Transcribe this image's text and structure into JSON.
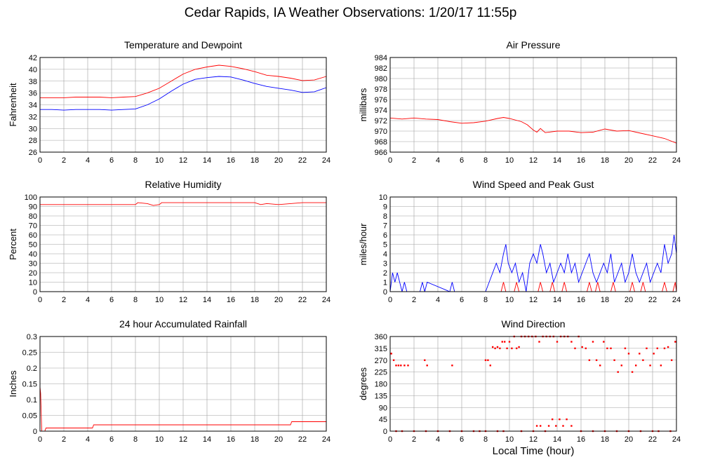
{
  "title": "Cedar Rapids, IA Weather Observations: 1/20/17 11:55p",
  "x_axis_label": "Local Time (hour)",
  "colors": {
    "red": "#ff0000",
    "blue": "#0000ff",
    "grid": "#a0a0a0"
  },
  "chart_data": [
    {
      "id": "temp",
      "type": "line",
      "title": "Temperature and Dewpoint",
      "ylabel": "Fahrenheit",
      "xlim": [
        0,
        24
      ],
      "ylim": [
        26,
        42
      ],
      "xticks": [
        0,
        2,
        4,
        6,
        8,
        10,
        12,
        14,
        16,
        18,
        20,
        22,
        24
      ],
      "yticks": [
        26,
        28,
        30,
        32,
        34,
        36,
        38,
        40,
        42
      ],
      "grid": true,
      "series": [
        {
          "color": "#ff0000",
          "x": [
            0,
            1,
            2,
            3,
            4,
            5,
            6,
            7,
            8,
            9,
            10,
            11,
            12,
            13,
            14,
            15,
            16,
            17,
            18,
            19,
            20,
            21,
            22,
            23,
            24
          ],
          "y": [
            35.2,
            35.2,
            35.2,
            35.3,
            35.3,
            35.3,
            35.2,
            35.3,
            35.4,
            36.0,
            36.8,
            38.0,
            39.2,
            40.0,
            40.4,
            40.7,
            40.5,
            40.1,
            39.6,
            39.0,
            38.8,
            38.5,
            38.1,
            38.2,
            38.8
          ]
        },
        {
          "color": "#0000ff",
          "x": [
            0,
            1,
            2,
            3,
            4,
            5,
            6,
            7,
            8,
            9,
            10,
            11,
            12,
            13,
            14,
            15,
            16,
            17,
            18,
            19,
            20,
            21,
            22,
            23,
            24
          ],
          "y": [
            33.2,
            33.2,
            33.1,
            33.2,
            33.2,
            33.2,
            33.1,
            33.2,
            33.3,
            34.0,
            35.0,
            36.3,
            37.5,
            38.3,
            38.6,
            38.8,
            38.7,
            38.2,
            37.6,
            37.1,
            36.8,
            36.5,
            36.1,
            36.2,
            36.9
          ]
        }
      ]
    },
    {
      "id": "pressure",
      "type": "line",
      "title": "Air Pressure",
      "ylabel": "millibars",
      "xlim": [
        0,
        24
      ],
      "ylim": [
        966,
        984
      ],
      "xticks": [
        0,
        2,
        4,
        6,
        8,
        10,
        12,
        14,
        16,
        18,
        20,
        22,
        24
      ],
      "yticks": [
        966,
        968,
        970,
        972,
        974,
        976,
        978,
        980,
        982,
        984
      ],
      "grid": true,
      "series": [
        {
          "color": "#ff0000",
          "x": [
            0,
            1,
            2,
            3,
            4,
            5,
            6,
            7,
            8,
            9,
            9.5,
            10,
            11,
            11.5,
            12,
            12.3,
            12.6,
            13,
            14,
            15,
            16,
            17,
            18,
            19,
            20,
            21,
            22,
            23,
            24
          ],
          "y": [
            972.5,
            972.3,
            972.5,
            972.3,
            972.2,
            971.8,
            971.5,
            971.6,
            971.9,
            972.4,
            972.6,
            972.4,
            971.8,
            971.2,
            970.2,
            969.8,
            970.5,
            969.7,
            970.0,
            970.0,
            969.7,
            969.8,
            970.4,
            970.0,
            970.1,
            969.6,
            969.1,
            968.6,
            967.7
          ]
        }
      ]
    },
    {
      "id": "humidity",
      "type": "line",
      "title": "Relative Humidity",
      "ylabel": "Percent",
      "xlim": [
        0,
        24
      ],
      "ylim": [
        0,
        100
      ],
      "xticks": [
        0,
        2,
        4,
        6,
        8,
        10,
        12,
        14,
        16,
        18,
        20,
        22,
        24
      ],
      "yticks": [
        0,
        10,
        20,
        30,
        40,
        50,
        60,
        70,
        80,
        90,
        100
      ],
      "grid": true,
      "series": [
        {
          "color": "#ff0000",
          "x": [
            0,
            8,
            8.2,
            9,
            9.5,
            10,
            10.2,
            12,
            18,
            18.5,
            19,
            20,
            21,
            22,
            24
          ],
          "y": [
            92,
            92,
            94,
            93,
            91,
            92,
            94,
            94,
            94,
            92,
            93,
            92,
            93,
            94,
            94
          ]
        }
      ]
    },
    {
      "id": "wind",
      "type": "line",
      "title": "Wind Speed and Peak Gust",
      "ylabel": "miles/hour",
      "xlim": [
        0,
        24
      ],
      "ylim": [
        0,
        10
      ],
      "xticks": [
        0,
        2,
        4,
        6,
        8,
        10,
        12,
        14,
        16,
        18,
        20,
        22,
        24
      ],
      "yticks": [
        0,
        1,
        2,
        3,
        4,
        5,
        6,
        7,
        8,
        9,
        10
      ],
      "grid": true,
      "series": [
        {
          "color": "#0000ff",
          "x": [
            0,
            0.2,
            0.4,
            0.6,
            0.8,
            1.0,
            1.2,
            1.4,
            2.5,
            2.7,
            2.9,
            3.1,
            5.0,
            5.2,
            5.4,
            8.0,
            8.3,
            8.6,
            8.9,
            9.2,
            9.5,
            9.7,
            9.9,
            10.2,
            10.5,
            10.8,
            11.1,
            11.4,
            11.7,
            12.0,
            12.3,
            12.6,
            12.8,
            13.1,
            13.4,
            13.7,
            14.0,
            14.3,
            14.6,
            14.9,
            15.2,
            15.5,
            15.8,
            16.1,
            16.4,
            16.7,
            17.0,
            17.3,
            17.6,
            17.9,
            18.2,
            18.5,
            18.8,
            19.1,
            19.4,
            19.7,
            20.0,
            20.3,
            20.6,
            20.9,
            21.2,
            21.5,
            21.8,
            22.1,
            22.4,
            22.7,
            23.0,
            23.3,
            23.6,
            23.8,
            24.0
          ],
          "y": [
            0,
            2,
            1,
            2,
            1,
            0,
            1,
            0,
            0,
            1,
            0,
            1,
            0,
            1,
            0,
            0,
            1,
            2,
            3,
            2,
            4,
            5,
            3,
            2,
            3,
            1,
            2,
            0,
            3,
            4,
            3,
            5,
            4,
            2,
            3,
            1,
            2,
            3,
            2,
            4,
            2,
            3,
            1,
            2,
            3,
            4,
            2,
            1,
            2,
            3,
            2,
            4,
            1,
            2,
            3,
            1,
            2,
            4,
            2,
            1,
            2,
            3,
            1,
            2,
            3,
            2,
            5,
            3,
            4,
            6,
            4
          ]
        },
        {
          "color": "#ff0000",
          "x": [
            0,
            9.3,
            9.5,
            9.7,
            10.0,
            10.4,
            10.6,
            10.8,
            12.0,
            12.4,
            12.6,
            12.8,
            13.4,
            13.6,
            13.8,
            14.4,
            14.6,
            14.8,
            16.5,
            16.7,
            16.9,
            17.2,
            17.4,
            17.6,
            18.5,
            18.7,
            18.9,
            20.1,
            20.3,
            20.5,
            21.0,
            21.2,
            21.4,
            22.8,
            23.0,
            23.2,
            23.7,
            23.9,
            24.0
          ],
          "y": [
            0,
            0,
            1,
            0,
            0,
            0,
            1,
            0,
            0,
            0,
            1,
            0,
            0,
            1,
            0,
            0,
            1,
            0,
            0,
            1,
            0,
            0,
            1,
            0,
            0,
            1,
            0,
            0,
            1,
            0,
            0,
            1,
            0,
            0,
            1,
            0,
            0,
            1,
            0
          ]
        }
      ]
    },
    {
      "id": "rain",
      "type": "line",
      "title": "24 hour Accumulated Rainfall",
      "ylabel": "Inches",
      "xlim": [
        0,
        24
      ],
      "ylim": [
        0,
        0.3
      ],
      "xticks": [
        0,
        2,
        4,
        6,
        8,
        10,
        12,
        14,
        16,
        18,
        20,
        22,
        24
      ],
      "yticks": [
        0,
        0.05,
        0.1,
        0.15,
        0.2,
        0.25,
        0.3
      ],
      "grid": true,
      "series": [
        {
          "color": "#ff0000",
          "x": [
            0,
            0.05,
            0.15,
            0.4,
            0.5,
            4.4,
            4.5,
            21.0,
            21.1,
            24.0
          ],
          "y": [
            0.14,
            0.12,
            0.0,
            0.0,
            0.01,
            0.01,
            0.02,
            0.02,
            0.03,
            0.03
          ]
        }
      ]
    },
    {
      "id": "winddir",
      "type": "scatter",
      "title": "Wind Direction",
      "ylabel": "degrees",
      "xlim": [
        0,
        24
      ],
      "ylim": [
        0,
        360
      ],
      "xticks": [
        0,
        2,
        4,
        6,
        8,
        10,
        12,
        14,
        16,
        18,
        20,
        22,
        24
      ],
      "yticks": [
        0,
        45,
        90,
        135,
        180,
        225,
        270,
        315,
        360
      ],
      "grid": true,
      "series": [
        {
          "color": "#ff0000",
          "x": [
            0.1,
            0.3,
            0.5,
            0.7,
            0.9,
            1.2,
            1.5,
            2.9,
            3.1,
            5.2,
            8.0,
            8.2,
            8.4,
            8.6,
            8.8,
            9.0,
            9.2,
            9.4,
            9.6,
            9.8,
            10.0,
            10.2,
            10.4,
            10.6,
            10.8,
            11.0,
            11.3,
            11.6,
            11.9,
            12.2,
            12.5,
            12.8,
            13.1,
            13.4,
            13.7,
            14.0,
            14.3,
            14.6,
            14.9,
            15.2,
            15.5,
            15.8,
            16.1,
            16.4,
            16.7,
            17.0,
            17.3,
            17.6,
            17.9,
            18.2,
            18.5,
            18.8,
            19.1,
            19.4,
            19.7,
            20.0,
            20.3,
            20.6,
            20.9,
            21.2,
            21.5,
            21.8,
            22.1,
            22.4,
            22.7,
            23.0,
            23.3,
            23.6,
            23.9,
            0.5,
            1.0,
            2.0,
            3.0,
            4.0,
            5.0,
            6.0,
            7.0,
            7.5,
            8.0,
            9.0,
            9.5,
            11.0,
            12.0,
            12.3,
            12.6,
            13.0,
            13.3,
            13.6,
            13.9,
            14.2,
            14.5,
            14.8,
            15.2,
            16.0,
            17.0,
            18.0,
            19.0,
            20.0,
            21.0,
            22.0,
            22.5,
            23.5
          ],
          "y": [
            295,
            270,
            250,
            250,
            250,
            250,
            250,
            270,
            250,
            250,
            270,
            270,
            250,
            320,
            315,
            320,
            315,
            340,
            340,
            315,
            340,
            315,
            360,
            315,
            320,
            360,
            360,
            360,
            360,
            360,
            340,
            360,
            360,
            360,
            360,
            340,
            360,
            360,
            360,
            340,
            315,
            360,
            320,
            315,
            270,
            340,
            270,
            250,
            340,
            315,
            315,
            270,
            225,
            250,
            315,
            295,
            225,
            250,
            295,
            270,
            315,
            250,
            295,
            315,
            250,
            315,
            320,
            270,
            340,
            0,
            0,
            0,
            0,
            0,
            0,
            0,
            0,
            0,
            0,
            0,
            0,
            0,
            0,
            20,
            20,
            0,
            20,
            45,
            20,
            45,
            20,
            45,
            20,
            0,
            0,
            0,
            0,
            0,
            0,
            0,
            0,
            0
          ]
        }
      ]
    }
  ]
}
